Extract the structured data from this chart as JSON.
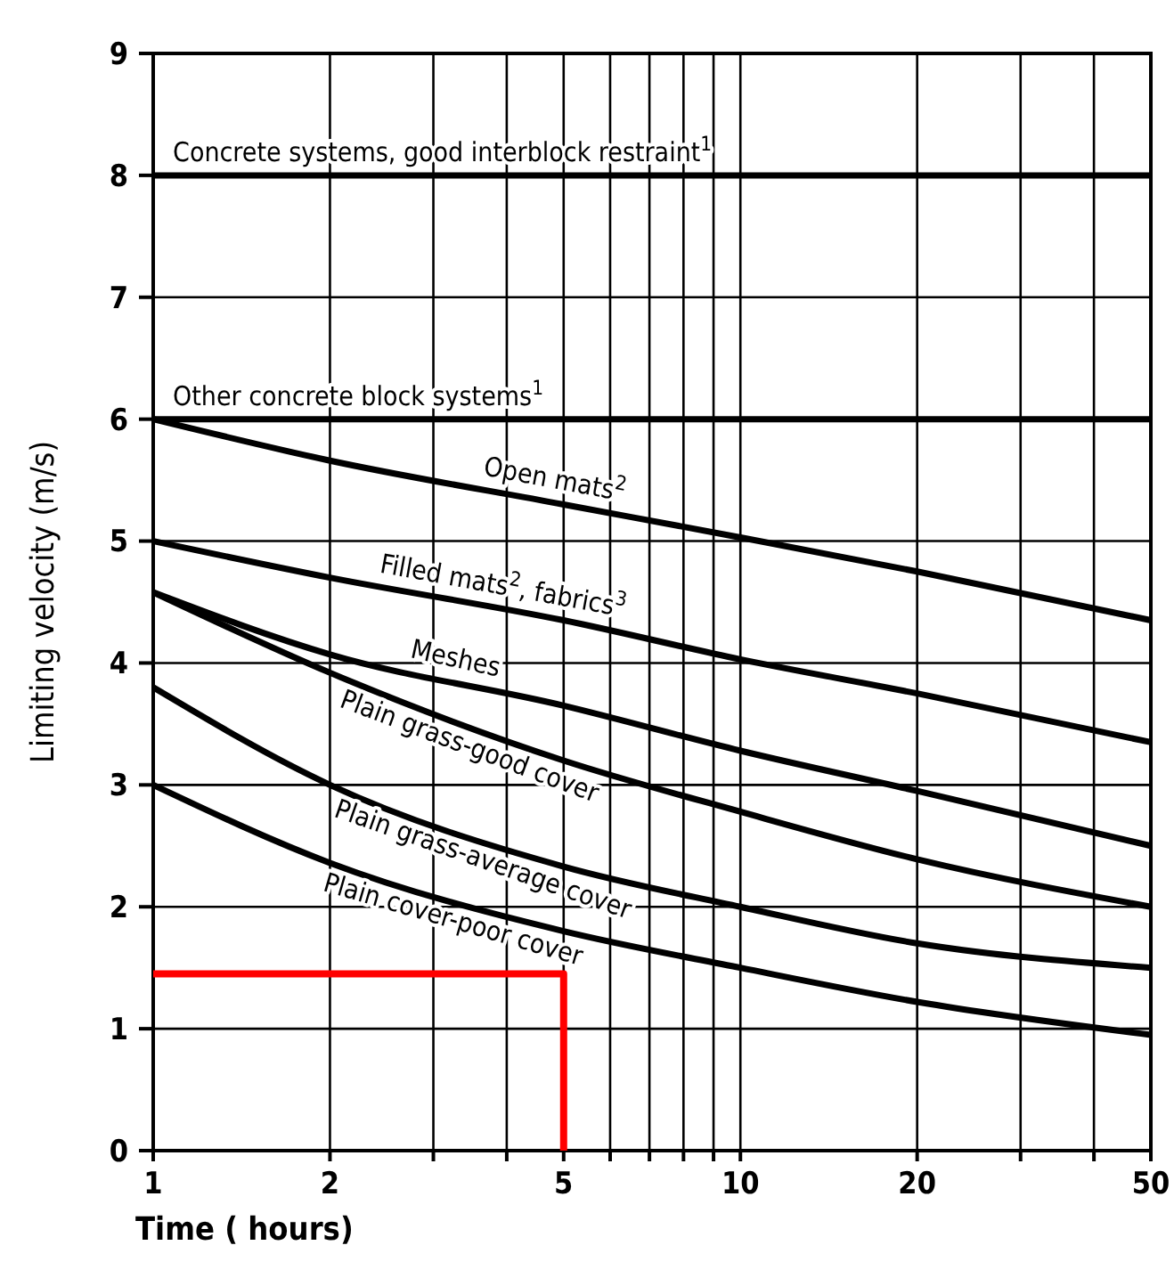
{
  "chart_data": {
    "type": "line",
    "xlabel": "Time ( hours)",
    "ylabel": "Limiting velocity (m/s)",
    "log": "x",
    "grid": true,
    "marker": "none",
    "line_style": "solid",
    "legend": false,
    "xlim": [
      1,
      50
    ],
    "ylim": [
      0,
      9
    ],
    "xticks": [
      1,
      2,
      {
        "value": 3,
        "label": null
      },
      {
        "value": 4,
        "label": null
      },
      5,
      {
        "value": 6,
        "label": null
      },
      {
        "value": 7,
        "label": null
      },
      {
        "value": 8,
        "label": null
      },
      {
        "value": 9,
        "label": null
      },
      10,
      20,
      {
        "value": 30,
        "label": null
      },
      {
        "value": 40,
        "label": null
      },
      50
    ],
    "yticks": [
      0,
      1,
      2,
      3,
      4,
      5,
      6,
      7,
      8,
      9
    ],
    "series": [
      {
        "name": "Concrete systems, good interblock restraint$^{1}$",
        "color": "#000000",
        "x": [
          1,
          50
        ],
        "values": [
          8,
          8
        ]
      },
      {
        "name": "Other concrete block systems$^{1}$",
        "color": "#000000",
        "x": [
          1,
          50
        ],
        "values": [
          6,
          6
        ]
      },
      {
        "name": "Open mats$^{2}$",
        "color": "#000000",
        "x": [
          1,
          2,
          5,
          10,
          20,
          50
        ],
        "values": [
          6,
          5.66,
          5.3,
          5.03,
          4.75,
          4.35
        ]
      },
      {
        "name": "Filled mats$^{2}$, fabrics$^{3}$",
        "color": "#000000",
        "x": [
          1,
          2,
          5,
          10,
          20,
          50
        ],
        "values": [
          5,
          4.7,
          4.35,
          4.03,
          3.75,
          3.35
        ]
      },
      {
        "name": "Meshes",
        "color": "#000000",
        "x": [
          1,
          2,
          5,
          10,
          20,
          50
        ],
        "values": [
          4.58,
          4.07,
          3.65,
          3.28,
          2.95,
          2.5
        ]
      },
      {
        "name": "Plain grass-good cover",
        "color": "#000000",
        "x": [
          1,
          2,
          5,
          10,
          20,
          50
        ],
        "values": [
          4.58,
          3.92,
          3.2,
          2.78,
          2.39,
          2.0
        ]
      },
      {
        "name": "Plain grass-average cover",
        "color": "#000000",
        "x": [
          1,
          2,
          5,
          10,
          20,
          50
        ],
        "values": [
          3.8,
          3.0,
          2.33,
          2.0,
          1.7,
          1.5
        ]
      },
      {
        "name": "Plain cover-poor cover",
        "color": "#000000",
        "x": [
          1,
          2,
          5,
          10,
          20,
          50
        ],
        "values": [
          3.0,
          2.36,
          1.8,
          1.5,
          1.22,
          0.95
        ]
      },
      {
        "color": "#ff0000",
        "x": [
          1,
          5,
          5
        ],
        "values": [
          1.45,
          1.45,
          0
        ]
      }
    ]
  }
}
